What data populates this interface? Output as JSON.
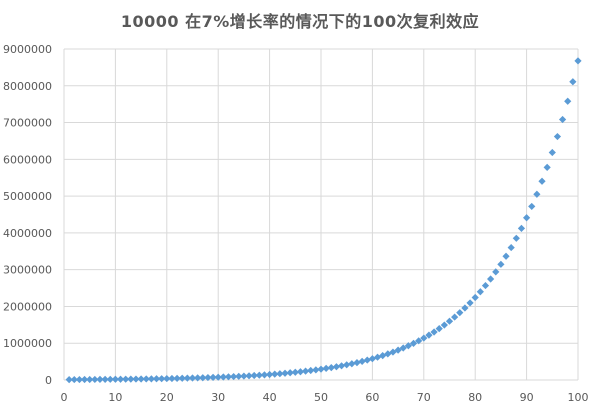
{
  "chart_data": {
    "type": "scatter",
    "title": "10000 在7%增长率的情况下的100次复利效应",
    "xlabel": "",
    "ylabel": "",
    "xlim": [
      0,
      100
    ],
    "ylim": [
      0,
      9000000
    ],
    "x_ticks": [
      "0",
      "10",
      "20",
      "30",
      "40",
      "50",
      "60",
      "70",
      "80",
      "90",
      "100"
    ],
    "y_ticks": [
      "0",
      "1000000",
      "2000000",
      "3000000",
      "4000000",
      "5000000",
      "6000000",
      "7000000",
      "8000000",
      "9000000"
    ],
    "grid": true,
    "legend": "none",
    "marker": "diamond",
    "color": "#5B9BD5",
    "series": [
      {
        "x": [
          1,
          2,
          3,
          4,
          5,
          6,
          7,
          8,
          9,
          10,
          11,
          12,
          13,
          14,
          15,
          16,
          17,
          18,
          19,
          20,
          21,
          22,
          23,
          24,
          25,
          26,
          27,
          28,
          29,
          30,
          31,
          32,
          33,
          34,
          35,
          36,
          37,
          38,
          39,
          40,
          41,
          42,
          43,
          44,
          45,
          46,
          47,
          48,
          49,
          50,
          51,
          52,
          53,
          54,
          55,
          56,
          57,
          58,
          59,
          60,
          61,
          62,
          63,
          64,
          65,
          66,
          67,
          68,
          69,
          70,
          71,
          72,
          73,
          74,
          75,
          76,
          77,
          78,
          79,
          80,
          81,
          82,
          83,
          84,
          85,
          86,
          87,
          88,
          89,
          90,
          91,
          92,
          93,
          94,
          95,
          96,
          97,
          98,
          99,
          100
        ],
        "y": [
          10700,
          11449,
          12250,
          13108,
          14026,
          15007,
          16058,
          17182,
          18385,
          19672,
          21049,
          22522,
          24098,
          25785,
          27590,
          29522,
          31588,
          33799,
          36165,
          38697,
          41406,
          44304,
          47405,
          50724,
          54274,
          58074,
          62139,
          66488,
          71143,
          76123,
          81451,
          87153,
          93253,
          99781,
          106766,
          114239,
          122236,
          130793,
          139948,
          149745,
          160227,
          171443,
          183444,
          196285,
          210025,
          224726,
          240457,
          257289,
          275299,
          294570,
          315190,
          337253,
          360861,
          386122,
          413150,
          442071,
          473015,
          506126,
          541555,
          579464,
          620026,
          663428,
          709868,
          759559,
          812728,
          869619,
          930492,
          995627,
          1065321,
          1139893,
          1219686,
          1305064,
          1396418,
          1494168,
          1598759,
          1710672,
          1830419,
          1958548,
          2095647,
          2242342,
          2399306,
          2567257,
          2746965,
          2939253,
          3145000,
          3365150,
          3600711,
          3852760,
          4122453,
          4411025,
          4719797,
          5050182,
          5403695,
          5781953,
          6186690,
          6619758,
          7083141,
          7578961,
          8109488,
          8677152
        ]
      }
    ]
  }
}
